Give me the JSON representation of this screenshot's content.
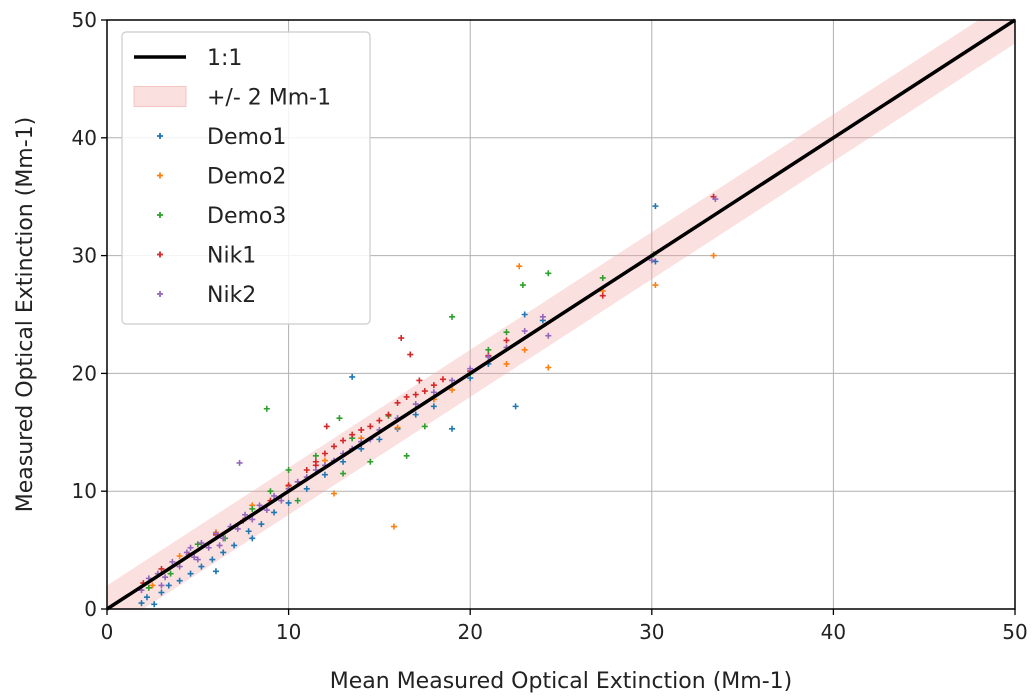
{
  "chart_data": {
    "type": "scatter",
    "xlabel": "Mean Measured Optical Extinction (Mm-1)",
    "ylabel": "Measured Optical Extinction (Mm-1)",
    "xlim": [
      0,
      50
    ],
    "ylim": [
      0,
      50
    ],
    "xticks": [
      "0",
      "10",
      "20",
      "30",
      "40",
      "50"
    ],
    "yticks": [
      "0",
      "10",
      "20",
      "30",
      "40",
      "50"
    ],
    "grid": true,
    "legend_position": "top-left",
    "reference_line": {
      "name": "1:1",
      "color": "#000000",
      "slope": 1,
      "intercept": 0
    },
    "band": {
      "name": "+/- 2 Mm-1",
      "color": "#f4a6a6",
      "width": 2
    },
    "series": [
      {
        "name": "Demo1",
        "color": "#1f77b4",
        "points": [
          [
            1.9,
            0.5
          ],
          [
            2.2,
            1.0
          ],
          [
            2.6,
            0.4
          ],
          [
            3.0,
            1.4
          ],
          [
            3.4,
            2.0
          ],
          [
            4.0,
            2.4
          ],
          [
            4.6,
            3.0
          ],
          [
            5.2,
            3.6
          ],
          [
            5.8,
            4.2
          ],
          [
            6.4,
            4.8
          ],
          [
            7.0,
            5.4
          ],
          [
            7.8,
            6.6
          ],
          [
            8.5,
            7.2
          ],
          [
            9.2,
            8.2
          ],
          [
            10.0,
            9.0
          ],
          [
            11.0,
            10.2
          ],
          [
            12.0,
            11.4
          ],
          [
            13.0,
            12.5
          ],
          [
            14.0,
            13.6
          ],
          [
            15.0,
            14.4
          ],
          [
            16.0,
            15.3
          ],
          [
            17.0,
            16.5
          ],
          [
            18.0,
            17.2
          ],
          [
            19.0,
            15.3
          ],
          [
            20.0,
            19.6
          ],
          [
            21.0,
            20.8
          ],
          [
            22.5,
            17.2
          ],
          [
            23.0,
            25.0
          ],
          [
            24.0,
            24.5
          ],
          [
            30.2,
            34.2
          ],
          [
            30.2,
            29.5
          ],
          [
            13.5,
            19.7
          ],
          [
            6.0,
            3.2
          ],
          [
            8.0,
            6.0
          ]
        ]
      },
      {
        "name": "Demo2",
        "color": "#ff7f0e",
        "points": [
          [
            2.5,
            2.0
          ],
          [
            4.0,
            4.5
          ],
          [
            6.0,
            6.5
          ],
          [
            8.0,
            8.8
          ],
          [
            10.0,
            10.4
          ],
          [
            12.0,
            12.6
          ],
          [
            14.0,
            14.5
          ],
          [
            15.8,
            7.0
          ],
          [
            16.0,
            15.4
          ],
          [
            18.0,
            17.8
          ],
          [
            19.0,
            18.6
          ],
          [
            21.0,
            21.5
          ],
          [
            22.0,
            20.8
          ],
          [
            22.7,
            29.1
          ],
          [
            23.0,
            22.0
          ],
          [
            24.3,
            20.5
          ],
          [
            30.2,
            27.5
          ],
          [
            33.4,
            30.0
          ],
          [
            27.3,
            27.0
          ],
          [
            12.5,
            9.8
          ]
        ]
      },
      {
        "name": "Demo3",
        "color": "#2ca02c",
        "points": [
          [
            2.3,
            1.8
          ],
          [
            3.5,
            3.0
          ],
          [
            5.0,
            5.5
          ],
          [
            6.5,
            6.0
          ],
          [
            8.0,
            8.5
          ],
          [
            8.8,
            17.0
          ],
          [
            9.0,
            10.0
          ],
          [
            10.5,
            9.2
          ],
          [
            11.5,
            13.0
          ],
          [
            13.0,
            11.5
          ],
          [
            13.5,
            14.5
          ],
          [
            14.5,
            12.5
          ],
          [
            15.5,
            16.4
          ],
          [
            16.5,
            13.0
          ],
          [
            17.5,
            15.5
          ],
          [
            19.0,
            24.8
          ],
          [
            20.0,
            20.0
          ],
          [
            21.0,
            22.0
          ],
          [
            22.0,
            23.5
          ],
          [
            22.9,
            27.5
          ],
          [
            24.3,
            28.5
          ],
          [
            27.3,
            28.1
          ],
          [
            30.1,
            30.1
          ],
          [
            10.0,
            11.8
          ],
          [
            12.8,
            16.2
          ]
        ]
      },
      {
        "name": "Nik1",
        "color": "#d62728",
        "points": [
          [
            2.0,
            2.2
          ],
          [
            3.0,
            3.4
          ],
          [
            4.5,
            4.6
          ],
          [
            6.0,
            6.3
          ],
          [
            7.5,
            7.5
          ],
          [
            9.0,
            9.2
          ],
          [
            10.0,
            10.5
          ],
          [
            11.0,
            11.8
          ],
          [
            11.5,
            12.5
          ],
          [
            12.0,
            13.2
          ],
          [
            12.5,
            13.8
          ],
          [
            13.0,
            14.3
          ],
          [
            13.5,
            14.8
          ],
          [
            14.0,
            15.2
          ],
          [
            14.5,
            15.5
          ],
          [
            15.0,
            16.0
          ],
          [
            15.5,
            16.5
          ],
          [
            16.0,
            17.5
          ],
          [
            16.5,
            18.0
          ],
          [
            17.0,
            18.2
          ],
          [
            17.5,
            18.5
          ],
          [
            18.0,
            19.0
          ],
          [
            18.5,
            19.5
          ],
          [
            20.0,
            20.2
          ],
          [
            21.0,
            21.5
          ],
          [
            22.0,
            22.8
          ],
          [
            16.2,
            23.0
          ],
          [
            16.7,
            21.6
          ],
          [
            11.5,
            12.2
          ],
          [
            27.3,
            26.6
          ],
          [
            33.4,
            35.0
          ],
          [
            12.1,
            15.5
          ],
          [
            17.2,
            19.4
          ]
        ]
      },
      {
        "name": "Nik2",
        "color": "#9467bd",
        "points": [
          [
            1.9,
            1.6
          ],
          [
            2.3,
            2.6
          ],
          [
            2.8,
            3.0
          ],
          [
            3.2,
            2.7
          ],
          [
            3.6,
            4.0
          ],
          [
            4.0,
            3.6
          ],
          [
            4.4,
            4.8
          ],
          [
            4.8,
            4.4
          ],
          [
            5.2,
            5.6
          ],
          [
            5.6,
            5.2
          ],
          [
            6.0,
            6.4
          ],
          [
            6.4,
            6.0
          ],
          [
            6.8,
            7.0
          ],
          [
            7.2,
            6.8
          ],
          [
            7.6,
            8.0
          ],
          [
            8.0,
            7.6
          ],
          [
            8.4,
            8.8
          ],
          [
            8.8,
            8.4
          ],
          [
            9.2,
            9.6
          ],
          [
            9.6,
            9.2
          ],
          [
            10.0,
            10.2
          ],
          [
            10.5,
            10.8
          ],
          [
            11.0,
            11.2
          ],
          [
            11.5,
            11.8
          ],
          [
            12.0,
            12.2
          ],
          [
            12.5,
            12.6
          ],
          [
            13.0,
            13.2
          ],
          [
            13.5,
            13.6
          ],
          [
            14.0,
            14.2
          ],
          [
            14.5,
            14.4
          ],
          [
            15.0,
            15.2
          ],
          [
            16.0,
            16.2
          ],
          [
            17.0,
            17.4
          ],
          [
            18.0,
            18.4
          ],
          [
            19.0,
            19.4
          ],
          [
            20.0,
            20.4
          ],
          [
            21.0,
            21.4
          ],
          [
            22.0,
            22.2
          ],
          [
            23.0,
            23.6
          ],
          [
            24.0,
            24.8
          ],
          [
            24.3,
            23.2
          ],
          [
            7.3,
            12.4
          ],
          [
            5.0,
            4.2
          ],
          [
            3.0,
            2.0
          ],
          [
            30.0,
            29.6
          ],
          [
            33.5,
            34.8
          ],
          [
            6.2,
            5.4
          ],
          [
            4.6,
            5.2
          ]
        ]
      }
    ]
  }
}
